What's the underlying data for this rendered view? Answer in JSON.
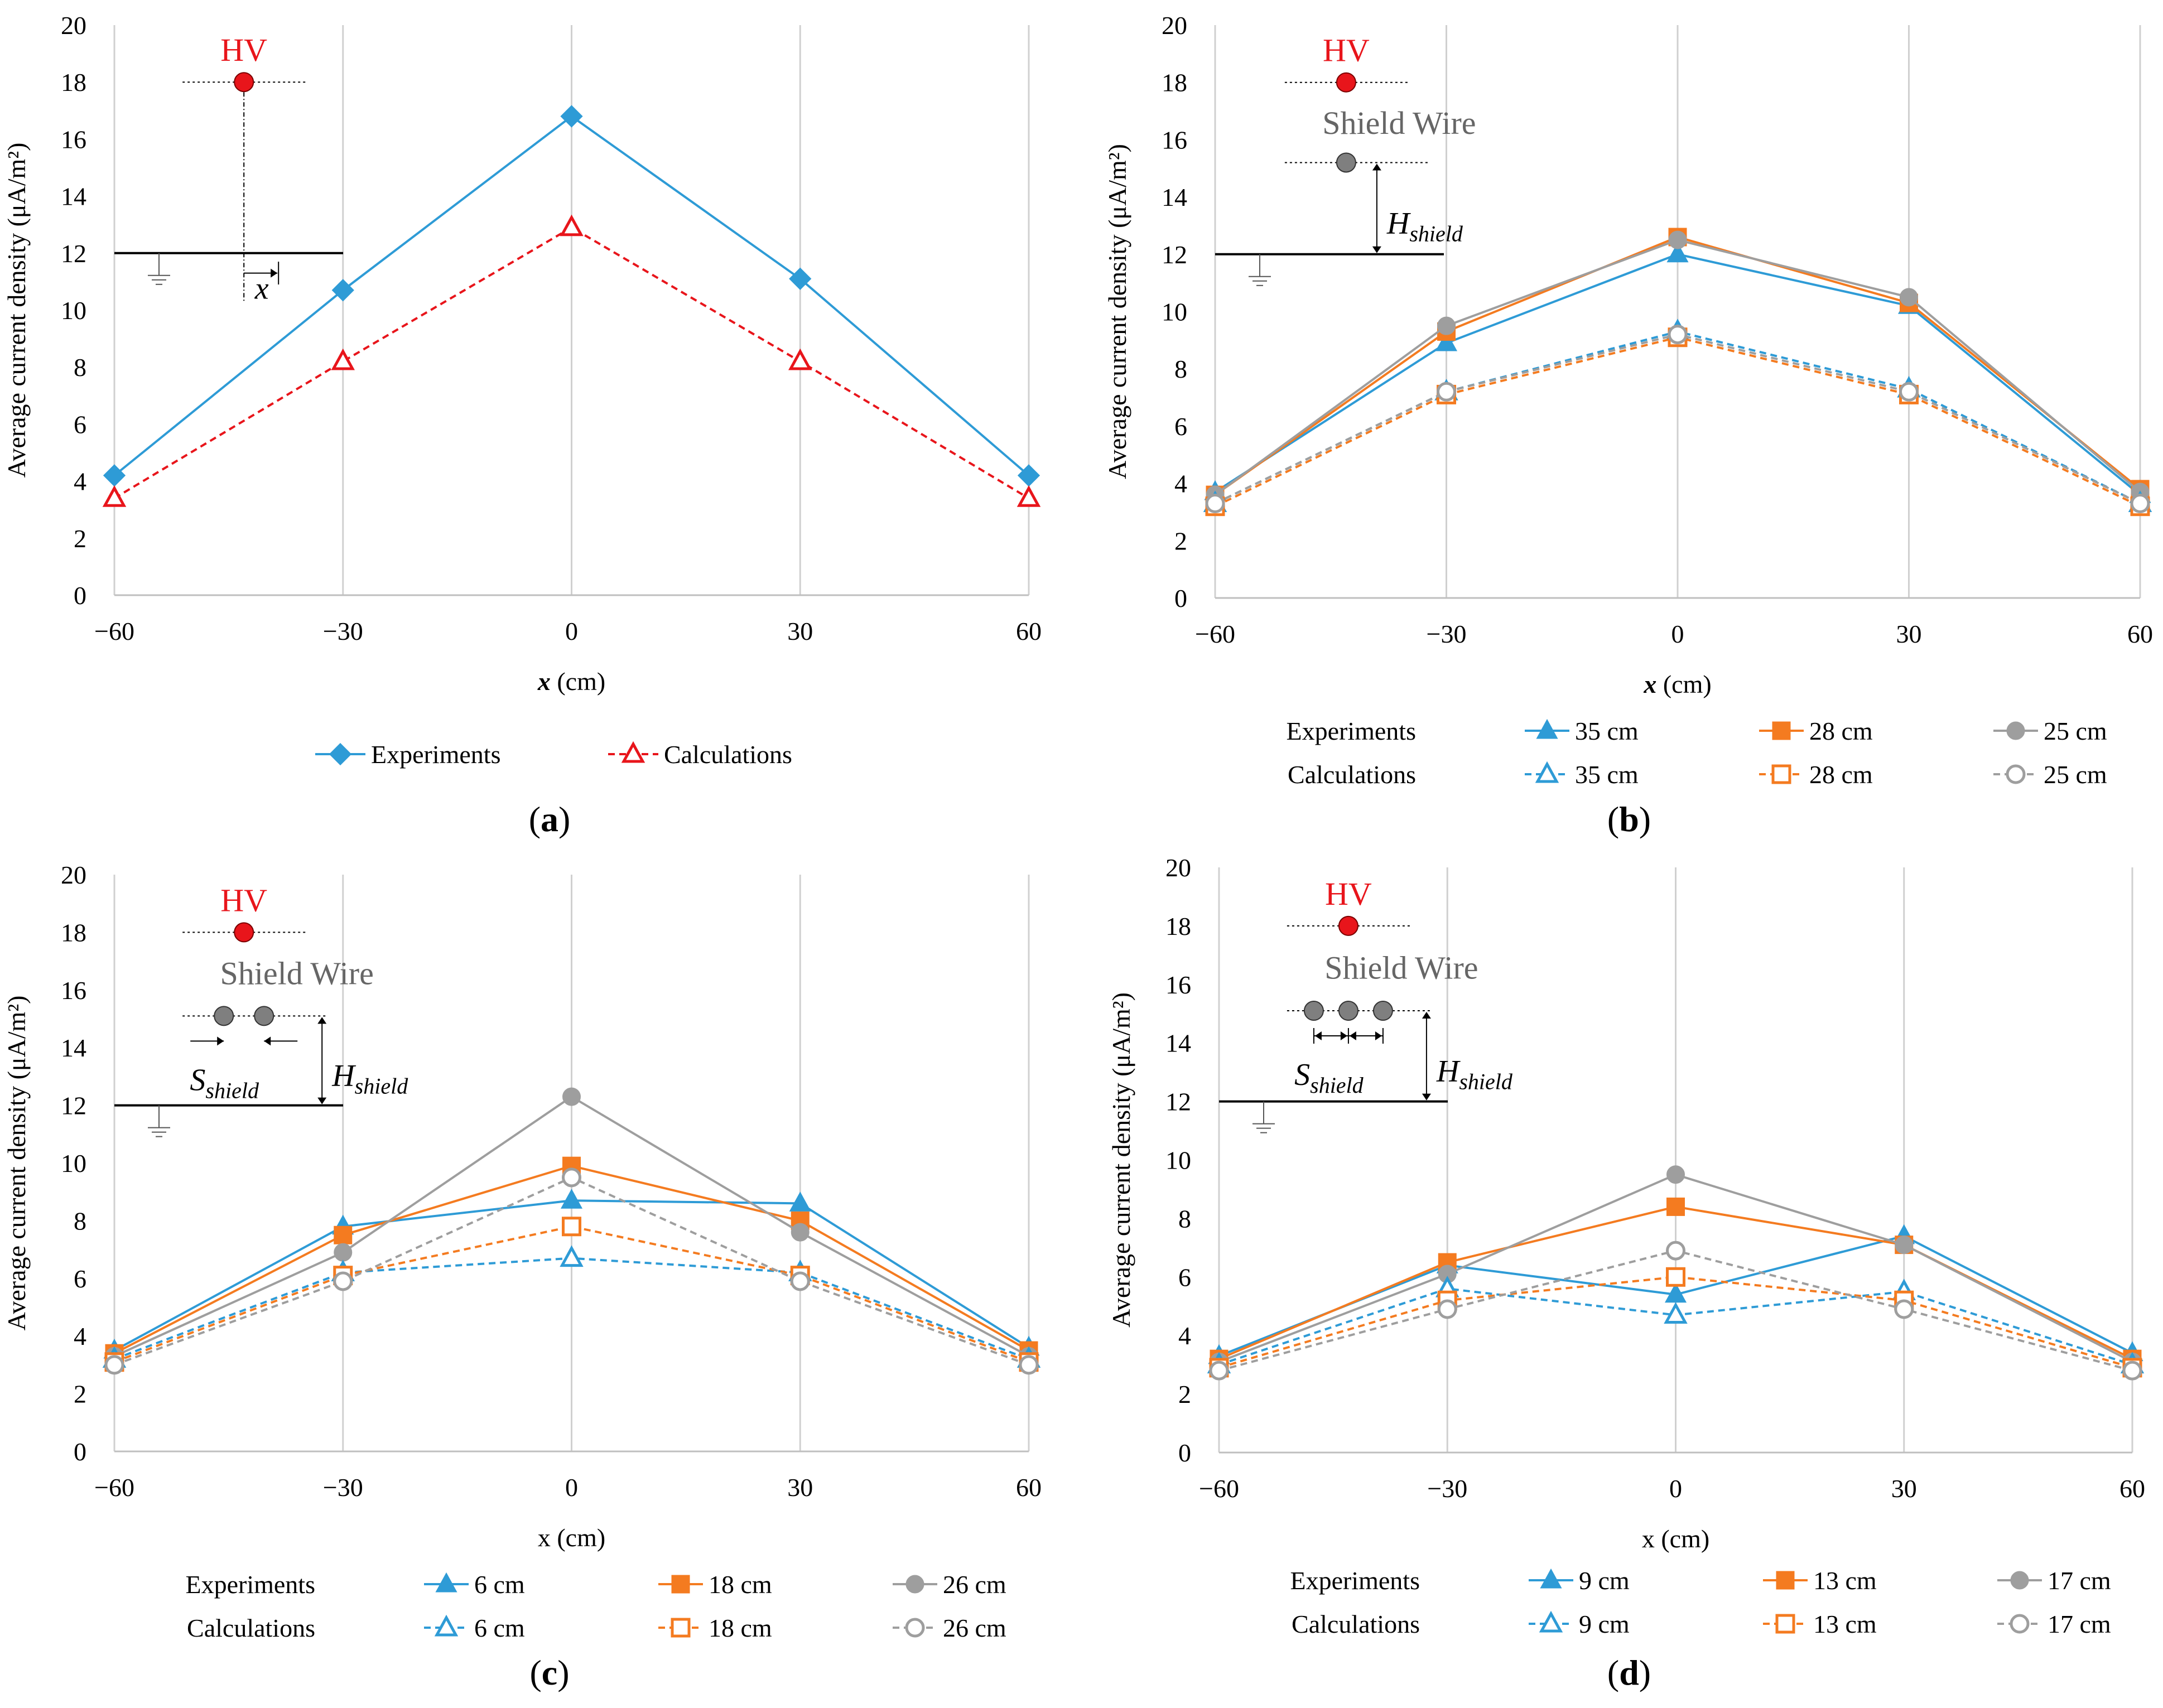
{
  "colors": {
    "blue": "#2e9bd6",
    "orange": "#f47b20",
    "gray": "#9e9e9e",
    "red": "#e8151b",
    "grid": "#d0d0d0",
    "axis": "#bfbfbf"
  },
  "chart_data": [
    {
      "id": "a",
      "panel_label": "a",
      "type": "line",
      "x": [
        -60,
        -30,
        0,
        30,
        60
      ],
      "xticks": [
        "−60",
        "−30",
        "0",
        "30",
        "60"
      ],
      "yticks": [
        "0",
        "2",
        "4",
        "6",
        "8",
        "10",
        "12",
        "14",
        "16",
        "18",
        "20"
      ],
      "ylim": [
        0,
        20
      ],
      "ylabel": "Average current density (μA/m²)",
      "xlabel_var": "x",
      "xlabel_unit": " (cm)",
      "xlabel_italic": true,
      "legend_layout": "inline",
      "series": [
        {
          "name": "Experiments",
          "values": [
            4.2,
            10.7,
            16.8,
            11.1,
            4.2
          ],
          "color": "blue",
          "marker": "diamond",
          "filled": true,
          "dashed": false
        },
        {
          "name": "Calculations",
          "values": [
            3.4,
            8.2,
            12.9,
            8.2,
            3.4
          ],
          "color": "red",
          "marker": "triangle",
          "filled": false,
          "dashed": true
        }
      ],
      "inset": {
        "hv": "HV",
        "x_symbol": "x"
      }
    },
    {
      "id": "b",
      "panel_label": "b",
      "type": "line",
      "x": [
        -60,
        -30,
        0,
        30,
        60
      ],
      "xticks": [
        "−60",
        "−30",
        "0",
        "30",
        "60"
      ],
      "yticks": [
        "0",
        "2",
        "4",
        "6",
        "8",
        "10",
        "12",
        "14",
        "16",
        "18",
        "20"
      ],
      "ylim": [
        0,
        20
      ],
      "ylabel": "Average current density (μA/m²)",
      "xlabel_var": "x",
      "xlabel_unit": " (cm)",
      "xlabel_italic": true,
      "legend_layout": "grid",
      "legend_row_labels": [
        "Experiments",
        "Calculations"
      ],
      "series": [
        {
          "name": "35 cm",
          "group": "Experiments",
          "values": [
            3.7,
            8.9,
            12.0,
            10.2,
            3.6
          ],
          "color": "blue",
          "marker": "triangle",
          "filled": true,
          "dashed": false
        },
        {
          "name": "28 cm",
          "group": "Experiments",
          "values": [
            3.6,
            9.3,
            12.6,
            10.3,
            3.8
          ],
          "color": "orange",
          "marker": "square",
          "filled": true,
          "dashed": false
        },
        {
          "name": "25 cm",
          "group": "Experiments",
          "values": [
            3.6,
            9.5,
            12.5,
            10.5,
            3.7
          ],
          "color": "gray",
          "marker": "circle",
          "filled": true,
          "dashed": false
        },
        {
          "name": "35 cm",
          "group": "Calculations",
          "values": [
            3.3,
            7.2,
            9.3,
            7.3,
            3.3
          ],
          "color": "blue",
          "marker": "triangle",
          "filled": false,
          "dashed": true
        },
        {
          "name": "28 cm",
          "group": "Calculations",
          "values": [
            3.2,
            7.1,
            9.1,
            7.1,
            3.2
          ],
          "color": "orange",
          "marker": "square",
          "filled": false,
          "dashed": true
        },
        {
          "name": "25 cm",
          "group": "Calculations",
          "values": [
            3.3,
            7.2,
            9.2,
            7.2,
            3.3
          ],
          "color": "gray",
          "marker": "circle",
          "filled": false,
          "dashed": true
        }
      ],
      "inset": {
        "hv": "HV",
        "shield_wire": "Shield Wire",
        "h_main": "H",
        "h_sub": "shield"
      }
    },
    {
      "id": "c",
      "panel_label": "c",
      "type": "line",
      "x": [
        -60,
        -30,
        0,
        30,
        60
      ],
      "xticks": [
        "−60",
        "−30",
        "0",
        "30",
        "60"
      ],
      "yticks": [
        "0",
        "2",
        "4",
        "6",
        "8",
        "10",
        "12",
        "14",
        "16",
        "18",
        "20"
      ],
      "ylim": [
        0,
        20
      ],
      "ylabel": "Average current density (μA/m²)",
      "xlabel_var": "x",
      "xlabel_unit": " (cm)",
      "xlabel_italic": false,
      "legend_layout": "grid",
      "legend_row_labels": [
        "Experiments",
        "Calculations"
      ],
      "series": [
        {
          "name": "6 cm",
          "group": "Experiments",
          "values": [
            3.5,
            7.8,
            8.7,
            8.6,
            3.6
          ],
          "color": "blue",
          "marker": "triangle",
          "filled": true,
          "dashed": false
        },
        {
          "name": "18 cm",
          "group": "Experiments",
          "values": [
            3.4,
            7.5,
            9.9,
            8.0,
            3.5
          ],
          "color": "orange",
          "marker": "square",
          "filled": true,
          "dashed": false
        },
        {
          "name": "26 cm",
          "group": "Experiments",
          "values": [
            3.3,
            6.9,
            12.3,
            7.6,
            3.3
          ],
          "color": "gray",
          "marker": "circle",
          "filled": true,
          "dashed": false
        },
        {
          "name": "6 cm",
          "group": "Calculations",
          "values": [
            3.2,
            6.2,
            6.7,
            6.2,
            3.2
          ],
          "color": "blue",
          "marker": "triangle",
          "filled": false,
          "dashed": true
        },
        {
          "name": "18 cm",
          "group": "Calculations",
          "values": [
            3.1,
            6.1,
            7.8,
            6.1,
            3.1
          ],
          "color": "orange",
          "marker": "square",
          "filled": false,
          "dashed": true
        },
        {
          "name": "26 cm",
          "group": "Calculations",
          "values": [
            3.0,
            5.9,
            9.5,
            5.9,
            3.0
          ],
          "color": "gray",
          "marker": "circle",
          "filled": false,
          "dashed": true
        }
      ],
      "inset": {
        "hv": "HV",
        "shield_wire": "Shield Wire",
        "h_main": "H",
        "h_sub": "shield",
        "s_main": "S",
        "s_sub": "shield",
        "wires": 2
      }
    },
    {
      "id": "d",
      "panel_label": "d",
      "type": "line",
      "x": [
        -60,
        -30,
        0,
        30,
        60
      ],
      "xticks": [
        "−60",
        "−30",
        "0",
        "30",
        "60"
      ],
      "yticks": [
        "0",
        "2",
        "4",
        "6",
        "8",
        "10",
        "12",
        "14",
        "16",
        "18",
        "20"
      ],
      "ylim": [
        0,
        20
      ],
      "ylabel": "Average current density (μA/m²)",
      "xlabel_var": "x",
      "xlabel_unit": " (cm)",
      "xlabel_italic": false,
      "legend_layout": "grid",
      "legend_row_labels": [
        "Experiments",
        "Calculations"
      ],
      "series": [
        {
          "name": "9 cm",
          "group": "Experiments",
          "values": [
            3.3,
            6.4,
            5.4,
            7.4,
            3.4
          ],
          "color": "blue",
          "marker": "triangle",
          "filled": true,
          "dashed": false
        },
        {
          "name": "13 cm",
          "group": "Experiments",
          "values": [
            3.2,
            6.5,
            8.4,
            7.1,
            3.2
          ],
          "color": "orange",
          "marker": "square",
          "filled": true,
          "dashed": false
        },
        {
          "name": "17 cm",
          "group": "Experiments",
          "values": [
            3.1,
            6.1,
            9.5,
            7.1,
            3.1
          ],
          "color": "gray",
          "marker": "circle",
          "filled": true,
          "dashed": false
        },
        {
          "name": "9 cm",
          "group": "Calculations",
          "values": [
            3.0,
            5.6,
            4.7,
            5.5,
            3.0
          ],
          "color": "blue",
          "marker": "triangle",
          "filled": false,
          "dashed": true
        },
        {
          "name": "13 cm",
          "group": "Calculations",
          "values": [
            2.9,
            5.2,
            6.0,
            5.2,
            2.9
          ],
          "color": "orange",
          "marker": "square",
          "filled": false,
          "dashed": true
        },
        {
          "name": "17 cm",
          "group": "Calculations",
          "values": [
            2.8,
            4.9,
            6.9,
            4.9,
            2.8
          ],
          "color": "gray",
          "marker": "circle",
          "filled": false,
          "dashed": true
        }
      ],
      "inset": {
        "hv": "HV",
        "shield_wire": "Shield Wire",
        "h_main": "H",
        "h_sub": "shield",
        "s_main": "S",
        "s_sub": "shield",
        "wires": 3
      }
    }
  ]
}
